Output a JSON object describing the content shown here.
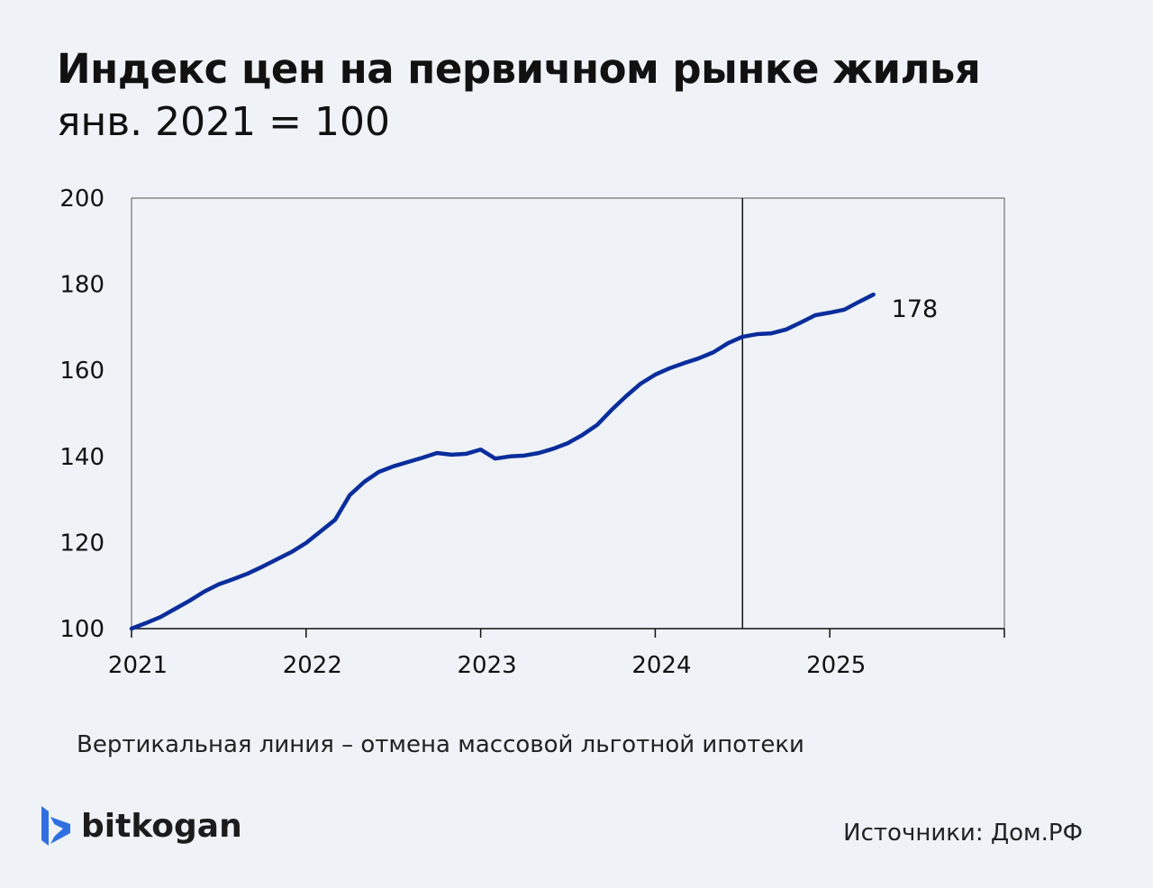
{
  "chart_data": {
    "type": "line",
    "title": "Индекс цен на первичном рынке жилья",
    "subtitle": "янв. 2021 = 100",
    "xlabel": "",
    "ylabel": "",
    "xlim": [
      2021,
      2026
    ],
    "ylim": [
      100,
      200
    ],
    "yticks": [
      100,
      120,
      140,
      160,
      180,
      200
    ],
    "ytick_labels": [
      "100",
      "120",
      "140",
      "160",
      "180",
      "200"
    ],
    "xticks": [
      2021,
      2022,
      2023,
      2024,
      2025
    ],
    "xtick_labels": [
      "2021",
      "2022",
      "2023",
      "2024",
      "2025"
    ],
    "grid": false,
    "color": "#0a2d9c",
    "series": [
      {
        "name": "Индекс цен",
        "start": "2021-01",
        "frequency": "monthly",
        "values": [
          100,
          101.3,
          102.7,
          104.6,
          106.5,
          108.6,
          110.3,
          111.5,
          112.8,
          114.4,
          116.1,
          117.8,
          119.9,
          122.6,
          125.3,
          131,
          134.1,
          136.4,
          137.7,
          138.7,
          139.7,
          140.8,
          140.4,
          140.6,
          141.6,
          139.5,
          140,
          140.2,
          140.8,
          141.8,
          143.1,
          145,
          147.3,
          150.8,
          154,
          156.9,
          159,
          160.5,
          161.7,
          162.8,
          164.2,
          166.3,
          167.8,
          168.4,
          168.6,
          169.5,
          171.1,
          172.8,
          173.4,
          174.1,
          175.9,
          177.6
        ]
      }
    ],
    "end_label": "178",
    "vline_x": 2024.5,
    "annotation": "Вертикальная линия – отмена массовой льготной ипотеки"
  },
  "footer": {
    "brand": "bitkogan",
    "source": "Источники: Дом.РФ"
  }
}
